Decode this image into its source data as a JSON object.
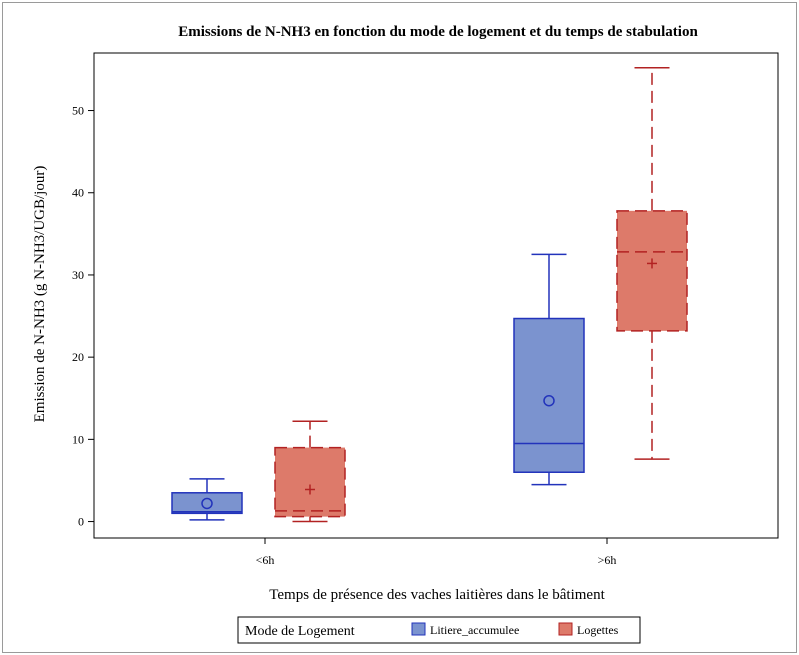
{
  "chart_data": {
    "type": "box",
    "title": "Emissions de N-NH3 en fonction du mode de logement et du temps de stabulation",
    "xlabel": "Temps de présence des vaches laitières dans le bâtiment",
    "ylabel": "Emission de N-NH3 (g N-NH3/UGB/jour)",
    "categories": [
      "<6h",
      ">6h"
    ],
    "ylim": [
      -2,
      57
    ],
    "yticks": [
      0,
      10,
      20,
      30,
      40,
      50
    ],
    "grid": false,
    "legend": {
      "title": "Mode de Logement",
      "placement": "bottom"
    },
    "series": [
      {
        "name": "Litiere_accumulee",
        "color": "#7b93cf",
        "stroke": "#2233bb",
        "mean_marker": "circle",
        "dashed": false,
        "boxes": [
          {
            "category": "<6h",
            "whisker_low": 0.2,
            "q1": 1.0,
            "median": 1.2,
            "q3": 3.5,
            "whisker_high": 5.2,
            "mean": 2.2
          },
          {
            "category": ">6h",
            "whisker_low": 4.5,
            "q1": 6.0,
            "median": 9.5,
            "q3": 24.7,
            "whisker_high": 32.5,
            "mean": 14.7
          }
        ]
      },
      {
        "name": "Logettes",
        "color": "#dd7a6a",
        "stroke": "#b22222",
        "mean_marker": "plus",
        "dashed": true,
        "boxes": [
          {
            "category": "<6h",
            "whisker_low": 0.0,
            "q1": 0.6,
            "median": 1.3,
            "q3": 9.0,
            "whisker_high": 12.2,
            "mean": 3.9
          },
          {
            "category": ">6h",
            "whisker_low": 7.6,
            "q1": 23.2,
            "median": 32.8,
            "q3": 37.8,
            "whisker_high": 55.2,
            "mean": 31.4
          }
        ]
      }
    ]
  }
}
